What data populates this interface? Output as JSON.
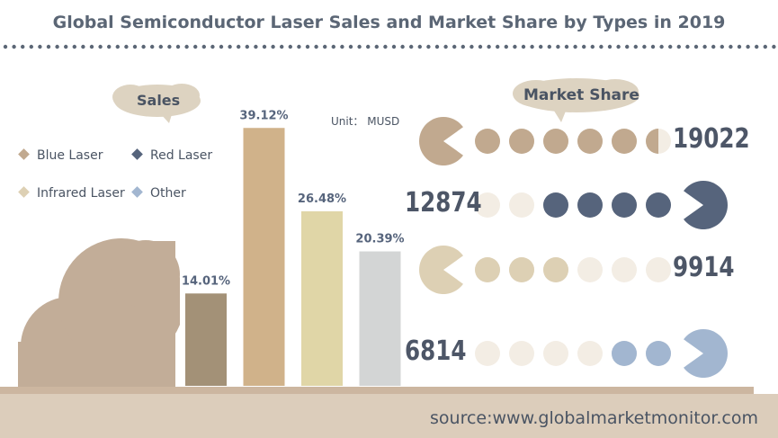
{
  "title": "Global Semiconductor Laser Sales and Market Share by Types in 2019",
  "sales_label": "Sales",
  "market_share_label": "Market Share",
  "unit": "Unit：  MUSD",
  "source": "source:www.globalmarketmonitor.com",
  "colors": {
    "blue_laser": "#c1a98f",
    "red_laser": "#56647c",
    "infrared_laser": "#ddd0b4",
    "other": "#a2b6d0",
    "bar_blue_laser": "#d0b28a",
    "bar_red_laser": "#a39177",
    "bar_infrared_laser": "#e0d6a7",
    "bar_other": "#d3d5d5",
    "cloud": "#c2ad98",
    "bubble": "#ddd3c1",
    "footer": "#dccdbb"
  },
  "chart_data": [
    {
      "type": "bar",
      "categories": [
        "Red Laser",
        "Blue Laser",
        "Infrared Laser",
        "Other"
      ],
      "values": [
        14.01,
        39.12,
        26.48,
        20.39
      ],
      "value_labels": [
        "14.01%",
        "39.12%",
        "26.48%",
        "20.39%"
      ],
      "unit": "%",
      "ylim": [
        0,
        40
      ],
      "grid": false
    },
    {
      "type": "pictorial",
      "legend": [
        "Blue Laser",
        "Red Laser",
        "Infrared Laser",
        "Other"
      ],
      "legend_placement": "left",
      "rows": [
        {
          "series": "Blue Laser",
          "value": 19022,
          "label": "19022",
          "filled_dots": 5.5,
          "total_dots": 6,
          "pacman_side": "left"
        },
        {
          "series": "Red Laser",
          "value": 12874,
          "label": "12874",
          "filled_dots": 4,
          "total_dots": 6,
          "pacman_side": "right"
        },
        {
          "series": "Infrared Laser",
          "value": 9914,
          "label": "9914",
          "filled_dots": 3,
          "total_dots": 6,
          "pacman_side": "left"
        },
        {
          "series": "Other",
          "value": 6814,
          "label": "6814",
          "filled_dots": 2,
          "total_dots": 6,
          "pacman_side": "right"
        }
      ]
    }
  ]
}
